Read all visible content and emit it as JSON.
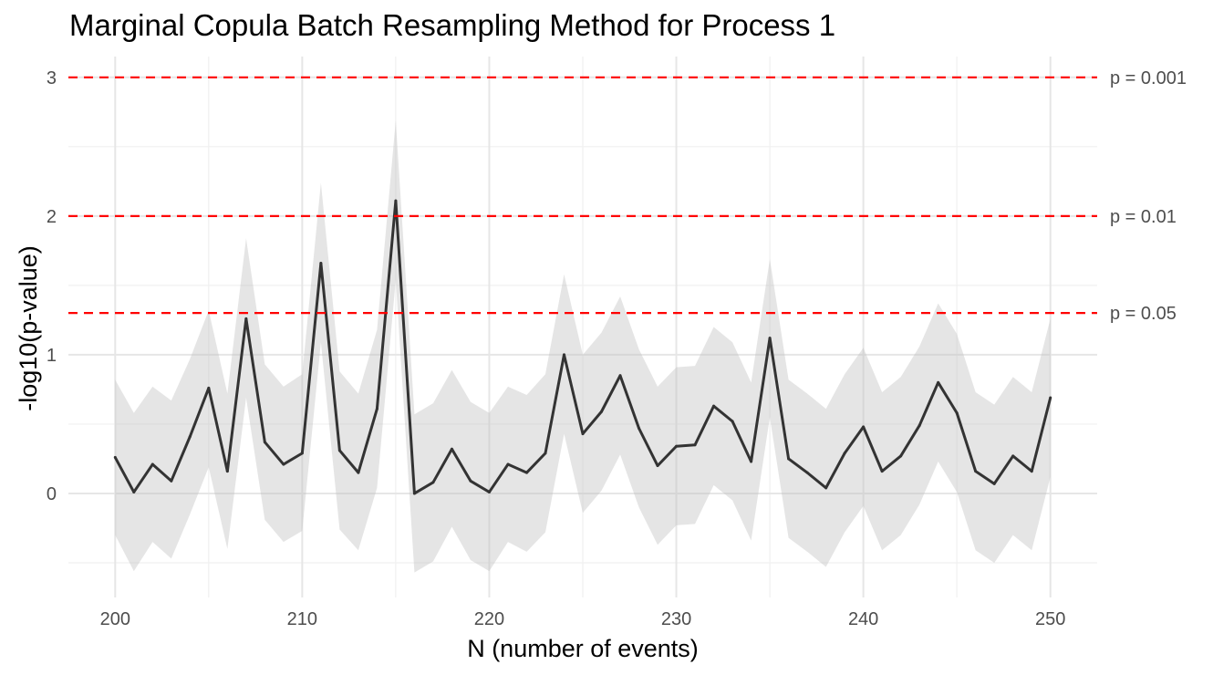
{
  "chart_data": {
    "type": "line",
    "title": "Marginal Copula Batch Resampling Method for Process 1",
    "xlabel": "N (number of events)",
    "ylabel": "-log10(p-value)",
    "xlim": [
      197.5,
      252.5
    ],
    "ylim": [
      -0.75,
      3.15
    ],
    "x_ticks": [
      200,
      210,
      220,
      230,
      240,
      250
    ],
    "y_ticks": [
      0,
      1,
      2,
      3
    ],
    "grid": true,
    "x": [
      200,
      201,
      202,
      203,
      204,
      205,
      206,
      207,
      208,
      209,
      210,
      211,
      212,
      213,
      214,
      215,
      216,
      217,
      218,
      219,
      220,
      221,
      222,
      223,
      224,
      225,
      226,
      227,
      228,
      229,
      230,
      231,
      232,
      233,
      234,
      235,
      236,
      237,
      238,
      239,
      240,
      241,
      242,
      243,
      244,
      245,
      246,
      247,
      248,
      249,
      250
    ],
    "series": [
      {
        "values": [
          0.26,
          0.01,
          0.21,
          0.09,
          0.41,
          0.76,
          0.16,
          1.26,
          0.37,
          0.21,
          0.29,
          1.66,
          0.31,
          0.15,
          0.61,
          2.11,
          0.0,
          0.08,
          0.32,
          0.09,
          0.01,
          0.21,
          0.15,
          0.29,
          1.0,
          0.43,
          0.59,
          0.85,
          0.47,
          0.2,
          0.34,
          0.35,
          0.63,
          0.52,
          0.23,
          1.12,
          0.25,
          0.15,
          0.04,
          0.29,
          0.48,
          0.16,
          0.27,
          0.49,
          0.8,
          0.58,
          0.16,
          0.07,
          0.27,
          0.16,
          0.69
        ],
        "band_upper": [
          0.82,
          0.58,
          0.77,
          0.67,
          0.97,
          1.32,
          0.72,
          1.84,
          0.93,
          0.77,
          0.86,
          2.24,
          0.88,
          0.72,
          1.18,
          2.69,
          0.57,
          0.65,
          0.89,
          0.66,
          0.58,
          0.77,
          0.71,
          0.86,
          1.58,
          1.0,
          1.16,
          1.42,
          1.04,
          0.77,
          0.91,
          0.92,
          1.2,
          1.09,
          0.8,
          1.69,
          0.82,
          0.72,
          0.61,
          0.86,
          1.05,
          0.73,
          0.84,
          1.06,
          1.37,
          1.15,
          0.73,
          0.64,
          0.84,
          0.73,
          1.26
        ],
        "band_lower": [
          -0.3,
          -0.56,
          -0.35,
          -0.47,
          -0.15,
          0.19,
          -0.4,
          0.69,
          -0.19,
          -0.35,
          -0.27,
          1.09,
          -0.26,
          -0.41,
          0.04,
          1.54,
          -0.57,
          -0.49,
          -0.24,
          -0.48,
          -0.56,
          -0.35,
          -0.42,
          -0.28,
          0.43,
          -0.14,
          0.02,
          0.28,
          -0.1,
          -0.37,
          -0.23,
          -0.22,
          0.06,
          -0.05,
          -0.34,
          0.55,
          -0.32,
          -0.42,
          -0.53,
          -0.28,
          -0.09,
          -0.41,
          -0.3,
          -0.08,
          0.23,
          0.01,
          -0.41,
          -0.5,
          -0.3,
          -0.41,
          0.12
        ],
        "color": "#333333",
        "band_color": "#bdbdbd"
      }
    ],
    "reference_lines": [
      {
        "y": 3,
        "label": "p = 0.001",
        "color": "#ff0000"
      },
      {
        "y": 2,
        "label": "p = 0.01",
        "color": "#ff0000"
      },
      {
        "y": 1.301,
        "label": "p = 0.05",
        "color": "#ff0000"
      }
    ]
  }
}
